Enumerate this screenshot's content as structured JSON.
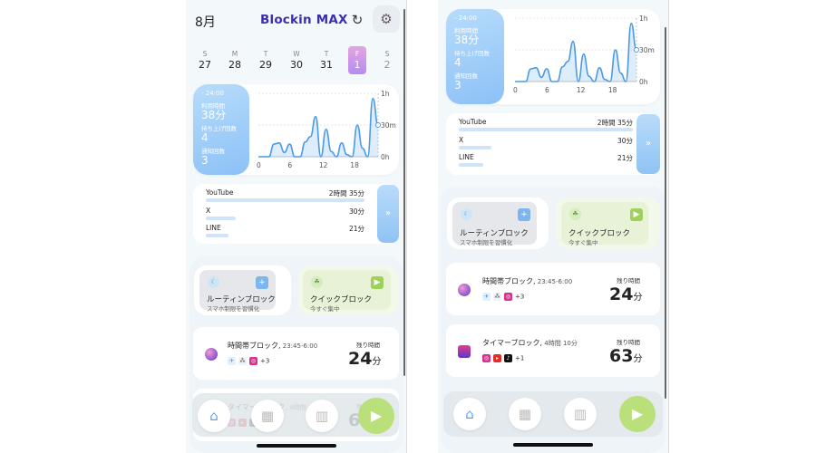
{
  "header": {
    "month": "8月",
    "logo": "Blockin MAX",
    "refresh_icon": "refresh-icon",
    "settings_icon": "gear-icon"
  },
  "week": [
    {
      "label": "S",
      "num": "27"
    },
    {
      "label": "M",
      "num": "28"
    },
    {
      "label": "T",
      "num": "29"
    },
    {
      "label": "W",
      "num": "30"
    },
    {
      "label": "T",
      "num": "31"
    },
    {
      "label": "F",
      "num": "1"
    },
    {
      "label": "S",
      "num": "2"
    }
  ],
  "stats": {
    "range": "- 24:00",
    "usage_label": "利用時間",
    "usage_value": "38分",
    "pickups_label": "持ち上げ回数",
    "pickups_value": "4",
    "notif_label": "通知回数",
    "notif_value": "3"
  },
  "chart_data": {
    "type": "area",
    "x_ticks": [
      "0",
      "6",
      "12",
      "18"
    ],
    "y_ticks": [
      "1h",
      "30m",
      "0h"
    ],
    "x": [
      0,
      1,
      2,
      3,
      4,
      5,
      6,
      7,
      8,
      9,
      10,
      11,
      12,
      13,
      14,
      15,
      16,
      17,
      18,
      19,
      20,
      21,
      22,
      23
    ],
    "values_min": [
      0,
      0,
      0,
      12,
      13,
      4,
      12,
      0,
      0,
      14,
      19,
      38,
      0,
      26,
      5,
      0,
      13,
      2,
      0,
      30,
      8,
      0,
      55,
      30
    ]
  },
  "apps": {
    "items": [
      {
        "name": "YouTube",
        "time": "2時間 35分",
        "fill": 1.0
      },
      {
        "name": "X",
        "time": "30分",
        "fill": 0.19
      },
      {
        "name": "LINE",
        "time": "21分",
        "fill": 0.14
      }
    ],
    "more": "»"
  },
  "blocks": {
    "routine_title": "ルーティンブロック",
    "routine_sub": "スマホ制限を習慣化",
    "routine_action": "+",
    "quick_title": "クイックブロック",
    "quick_sub": "今すぐ集中",
    "quick_action": "▶"
  },
  "schedules": [
    {
      "title": "時間帯ブロック,",
      "time": " 23:45-6:00",
      "apps_more": "+3",
      "remain_label": "残り時間",
      "remain_value": "24",
      "remain_unit": "分"
    },
    {
      "title": "タイマーブロック,",
      "time": " 4時間 10分",
      "apps_more": "+1",
      "remain_label": "残り時間",
      "remain_value": "63",
      "remain_unit": "分"
    }
  ],
  "tabs": {
    "home_icon": "⌂",
    "calendar_icon": "▦",
    "stats_icon": "▥",
    "play_icon": "▶"
  },
  "colors": {
    "accent": "#3b2fb0",
    "chart_line": "#4a9ae8",
    "stats_bg": "#9ecbf8",
    "play": "#b9e07a"
  }
}
